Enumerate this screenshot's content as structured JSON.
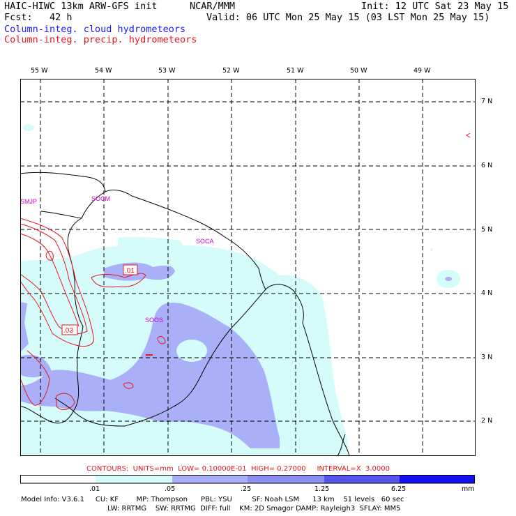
{
  "header": {
    "title": "HAIC-HIWC 13km ARW-GFS init",
    "org": "NCAR/MMM",
    "init": "Init: 12 UTC Sat 23 May 15",
    "fcst": "Fcst:   42 h",
    "valid": "Valid: 06 UTC Mon 25 May 15 (03 LST Mon 25 May 15)",
    "field1": "Column-integ. cloud hydrometeors",
    "field2": "Column-integ. precip. hydrometeors"
  },
  "axes": {
    "lon_labels": [
      "55 W",
      "54 W",
      "53 W",
      "52 W",
      "51 W",
      "50 W",
      "49 W"
    ],
    "lat_labels": [
      "7 N",
      "6 N",
      "5 N",
      "4 N",
      "3 N",
      "2 N"
    ]
  },
  "stations": [
    "SMJP",
    "SOCM",
    "SOCA",
    "SOOS"
  ],
  "contour_labels": [
    ".01",
    ".03"
  ],
  "contour_info": "CONTOURS:  UNITS=mm  LOW= 0.10000E-01  HIGH= 0.27000     INTERVAL=X  3.0000",
  "colorbar": {
    "ticks": [
      ".01",
      ".05",
      ".25",
      "1.25",
      "6.25"
    ],
    "unit": "mm",
    "colors": [
      "#ffffff",
      "#d6fbfb",
      "#aab0f8",
      "#6666ee",
      "#1010f0"
    ]
  },
  "model_info": {
    "line1": "Model Info: V3.6.1     CU: KF        MP: Thompson      PBL: YSU         SF: Noah LSM      13 km    51 levels   60 sec",
    "line2": "LW: RRTMG    SW: RRTMG  DIFF: full    KM: 2D Smagor DAMP: Rayleigh3  SFLAY: MM5"
  },
  "colors": {
    "cloud_fill_light": "#d6fbfb",
    "cloud_fill_mid": "#aab0f8",
    "precip_contour": "#e8151c",
    "station": "#cc00cc",
    "header_blue": "#1a1aff"
  }
}
